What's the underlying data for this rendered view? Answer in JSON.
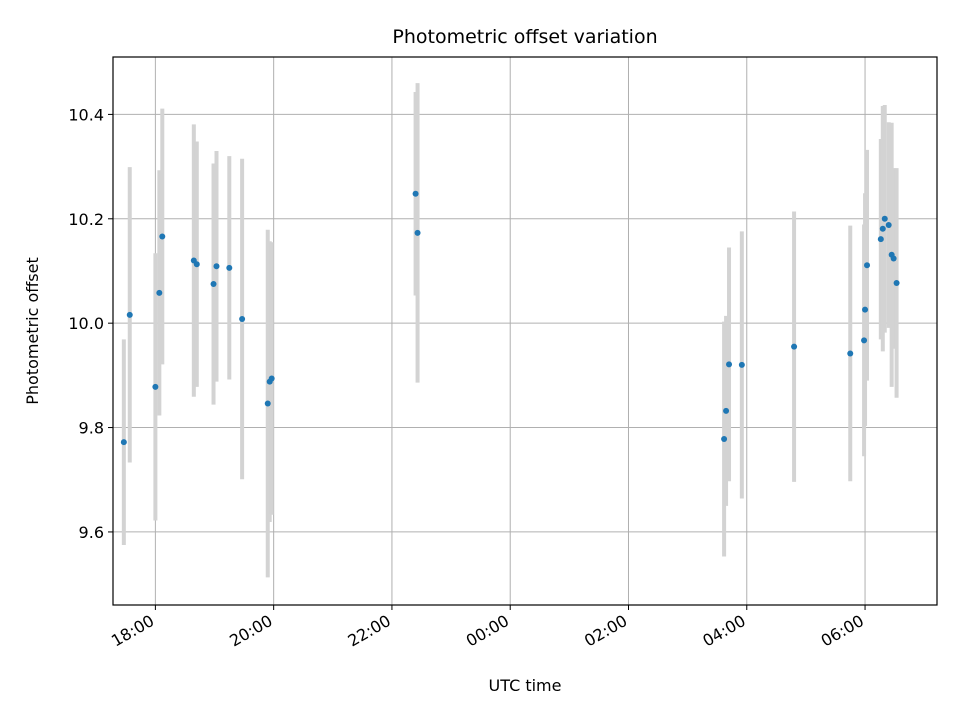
{
  "chart_data": {
    "type": "scatter",
    "title": "Photometric offset variation",
    "xlabel": "UTC time",
    "ylabel": "Photometric offset",
    "xlim": [
      "17:17",
      "07:13"
    ],
    "ylim": [
      9.46,
      10.51
    ],
    "x_ticks": [
      "18:00",
      "20:00",
      "22:00",
      "00:00",
      "02:00",
      "04:00",
      "06:00"
    ],
    "y_ticks": [
      9.6,
      9.8,
      10.0,
      10.2,
      10.4
    ],
    "grid": true,
    "marker_color": "#1f77b4",
    "errorbar_color": "#d3d3d3",
    "points": [
      {
        "x": "17:28",
        "y": 9.772,
        "err": 0.197
      },
      {
        "x": "17:34",
        "y": 10.016,
        "err": 0.283
      },
      {
        "x": "18:00",
        "y": 9.878,
        "err": 0.256
      },
      {
        "x": "18:04",
        "y": 10.058,
        "err": 0.235
      },
      {
        "x": "18:07",
        "y": 10.166,
        "err": 0.245
      },
      {
        "x": "18:39",
        "y": 10.12,
        "err": 0.261
      },
      {
        "x": "18:42",
        "y": 10.113,
        "err": 0.235
      },
      {
        "x": "18:59",
        "y": 10.075,
        "err": 0.231
      },
      {
        "x": "19:02",
        "y": 10.109,
        "err": 0.221
      },
      {
        "x": "19:15",
        "y": 10.106,
        "err": 0.214
      },
      {
        "x": "19:28",
        "y": 10.008,
        "err": 0.307
      },
      {
        "x": "19:54",
        "y": 9.846,
        "err": 0.333
      },
      {
        "x": "19:56",
        "y": 9.888,
        "err": 0.269
      },
      {
        "x": "19:58",
        "y": 9.894,
        "err": 0.261
      },
      {
        "x": "22:24",
        "y": 10.248,
        "err": 0.195
      },
      {
        "x": "22:26",
        "y": 10.173,
        "err": 0.287
      },
      {
        "x": "03:37",
        "y": 9.778,
        "err": 0.225
      },
      {
        "x": "03:39",
        "y": 9.832,
        "err": 0.182
      },
      {
        "x": "03:42",
        "y": 9.921,
        "err": 0.224
      },
      {
        "x": "03:55",
        "y": 9.92,
        "err": 0.256
      },
      {
        "x": "04:48",
        "y": 9.955,
        "err": 0.259
      },
      {
        "x": "05:45",
        "y": 9.942,
        "err": 0.245
      },
      {
        "x": "05:59",
        "y": 9.967,
        "err": 0.222
      },
      {
        "x": "06:00",
        "y": 10.026,
        "err": 0.223
      },
      {
        "x": "06:02",
        "y": 10.111,
        "err": 0.221
      },
      {
        "x": "06:16",
        "y": 10.161,
        "err": 0.192
      },
      {
        "x": "06:18",
        "y": 10.181,
        "err": 0.235
      },
      {
        "x": "06:20",
        "y": 10.2,
        "err": 0.218
      },
      {
        "x": "06:24",
        "y": 10.188,
        "err": 0.197
      },
      {
        "x": "06:27",
        "y": 10.131,
        "err": 0.253
      },
      {
        "x": "06:29",
        "y": 10.124,
        "err": 0.173
      },
      {
        "x": "06:32",
        "y": 10.077,
        "err": 0.22
      }
    ]
  }
}
